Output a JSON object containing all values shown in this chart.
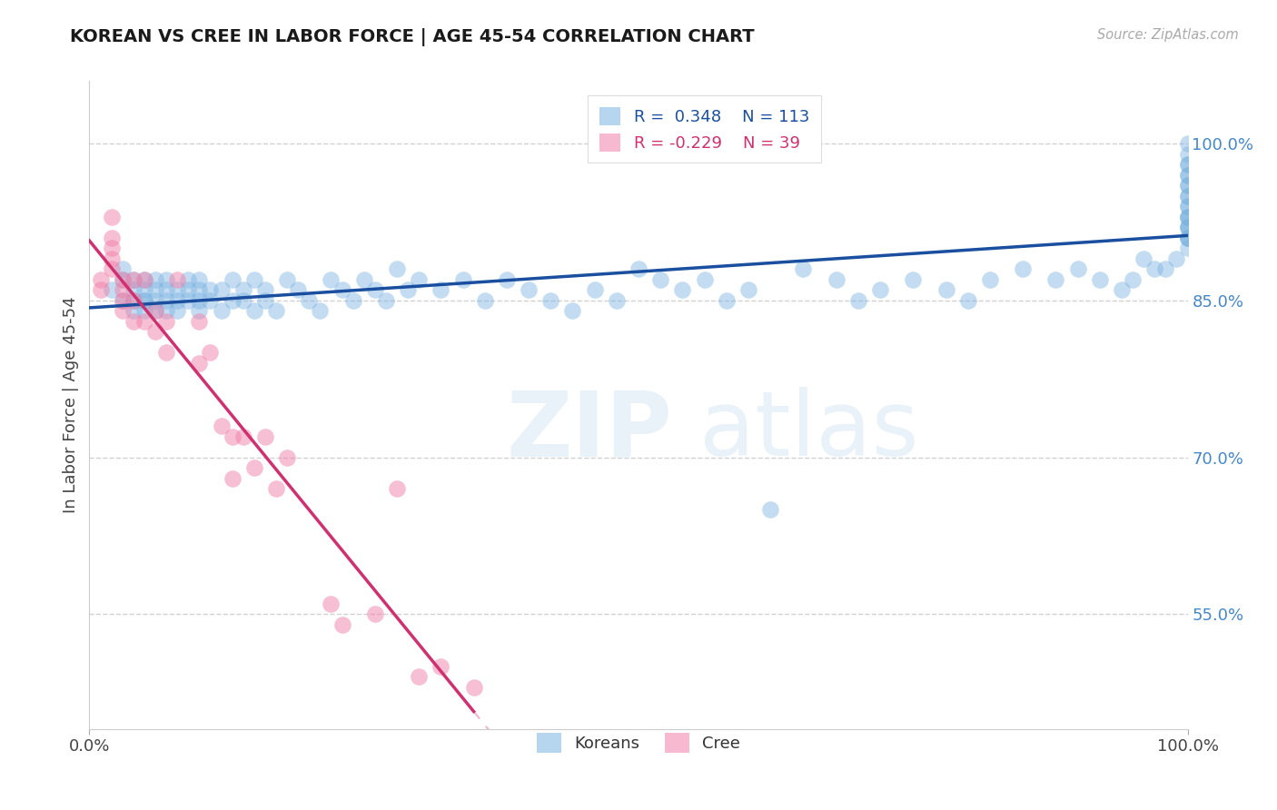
{
  "title": "KOREAN VS CREE IN LABOR FORCE | AGE 45-54 CORRELATION CHART",
  "source": "Source: ZipAtlas.com",
  "ylabel": "In Labor Force | Age 45-54",
  "yticks": [
    0.55,
    0.7,
    0.85,
    1.0
  ],
  "ytick_labels": [
    "55.0%",
    "70.0%",
    "85.0%",
    "100.0%"
  ],
  "xlim": [
    0.0,
    1.0
  ],
  "ylim": [
    0.44,
    1.06
  ],
  "korean_R": "0.348",
  "korean_N": "113",
  "cree_R": "-0.229",
  "cree_N": "39",
  "korean_color": "#7ab3e0",
  "cree_color": "#f080a8",
  "korean_line_color": "#1a4fa0",
  "cree_line_color": "#d03070",
  "background_color": "#ffffff",
  "korean_x": [
    0.02,
    0.03,
    0.03,
    0.03,
    0.04,
    0.04,
    0.04,
    0.04,
    0.05,
    0.05,
    0.05,
    0.05,
    0.05,
    0.06,
    0.06,
    0.06,
    0.06,
    0.07,
    0.07,
    0.07,
    0.07,
    0.08,
    0.08,
    0.08,
    0.09,
    0.09,
    0.09,
    0.1,
    0.1,
    0.1,
    0.1,
    0.11,
    0.11,
    0.12,
    0.12,
    0.13,
    0.13,
    0.14,
    0.14,
    0.15,
    0.15,
    0.16,
    0.16,
    0.17,
    0.18,
    0.19,
    0.2,
    0.21,
    0.22,
    0.23,
    0.24,
    0.25,
    0.26,
    0.27,
    0.28,
    0.29,
    0.3,
    0.32,
    0.34,
    0.36,
    0.38,
    0.4,
    0.42,
    0.44,
    0.46,
    0.48,
    0.5,
    0.52,
    0.54,
    0.56,
    0.58,
    0.6,
    0.62,
    0.65,
    0.68,
    0.7,
    0.72,
    0.75,
    0.78,
    0.8,
    0.82,
    0.85,
    0.88,
    0.9,
    0.92,
    0.94,
    0.95,
    0.96,
    0.97,
    0.98,
    0.99,
    1.0,
    1.0,
    1.0,
    1.0,
    1.0,
    1.0,
    1.0,
    1.0,
    1.0,
    1.0,
    1.0,
    1.0,
    1.0,
    1.0,
    1.0,
    1.0,
    1.0,
    1.0,
    1.0,
    1.0,
    1.0,
    1.0
  ],
  "korean_y": [
    0.86,
    0.87,
    0.85,
    0.88,
    0.84,
    0.86,
    0.87,
    0.85,
    0.85,
    0.84,
    0.86,
    0.87,
    0.85,
    0.84,
    0.86,
    0.85,
    0.87,
    0.85,
    0.86,
    0.84,
    0.87,
    0.85,
    0.84,
    0.86,
    0.86,
    0.85,
    0.87,
    0.86,
    0.85,
    0.84,
    0.87,
    0.86,
    0.85,
    0.84,
    0.86,
    0.85,
    0.87,
    0.86,
    0.85,
    0.84,
    0.87,
    0.85,
    0.86,
    0.84,
    0.87,
    0.86,
    0.85,
    0.84,
    0.87,
    0.86,
    0.85,
    0.87,
    0.86,
    0.85,
    0.88,
    0.86,
    0.87,
    0.86,
    0.87,
    0.85,
    0.87,
    0.86,
    0.85,
    0.84,
    0.86,
    0.85,
    0.88,
    0.87,
    0.86,
    0.87,
    0.85,
    0.86,
    0.65,
    0.88,
    0.87,
    0.85,
    0.86,
    0.87,
    0.86,
    0.85,
    0.87,
    0.88,
    0.87,
    0.88,
    0.87,
    0.86,
    0.87,
    0.89,
    0.88,
    0.88,
    0.89,
    0.9,
    0.91,
    0.92,
    0.91,
    0.92,
    0.93,
    0.92,
    0.91,
    0.93,
    0.94,
    0.95,
    0.94,
    0.93,
    0.96,
    0.95,
    0.97,
    0.98,
    1.0,
    0.99,
    0.98,
    0.97,
    0.96
  ],
  "cree_x": [
    0.01,
    0.01,
    0.02,
    0.02,
    0.02,
    0.02,
    0.02,
    0.03,
    0.03,
    0.03,
    0.03,
    0.04,
    0.04,
    0.04,
    0.05,
    0.05,
    0.06,
    0.06,
    0.07,
    0.07,
    0.08,
    0.1,
    0.1,
    0.11,
    0.12,
    0.13,
    0.13,
    0.14,
    0.15,
    0.16,
    0.17,
    0.18,
    0.22,
    0.23,
    0.26,
    0.28,
    0.3,
    0.32,
    0.35
  ],
  "cree_y": [
    0.87,
    0.86,
    0.93,
    0.91,
    0.9,
    0.89,
    0.88,
    0.87,
    0.86,
    0.85,
    0.84,
    0.87,
    0.85,
    0.83,
    0.87,
    0.83,
    0.84,
    0.82,
    0.83,
    0.8,
    0.87,
    0.83,
    0.79,
    0.8,
    0.73,
    0.72,
    0.68,
    0.72,
    0.69,
    0.72,
    0.67,
    0.7,
    0.56,
    0.54,
    0.55,
    0.67,
    0.49,
    0.5,
    0.48
  ]
}
